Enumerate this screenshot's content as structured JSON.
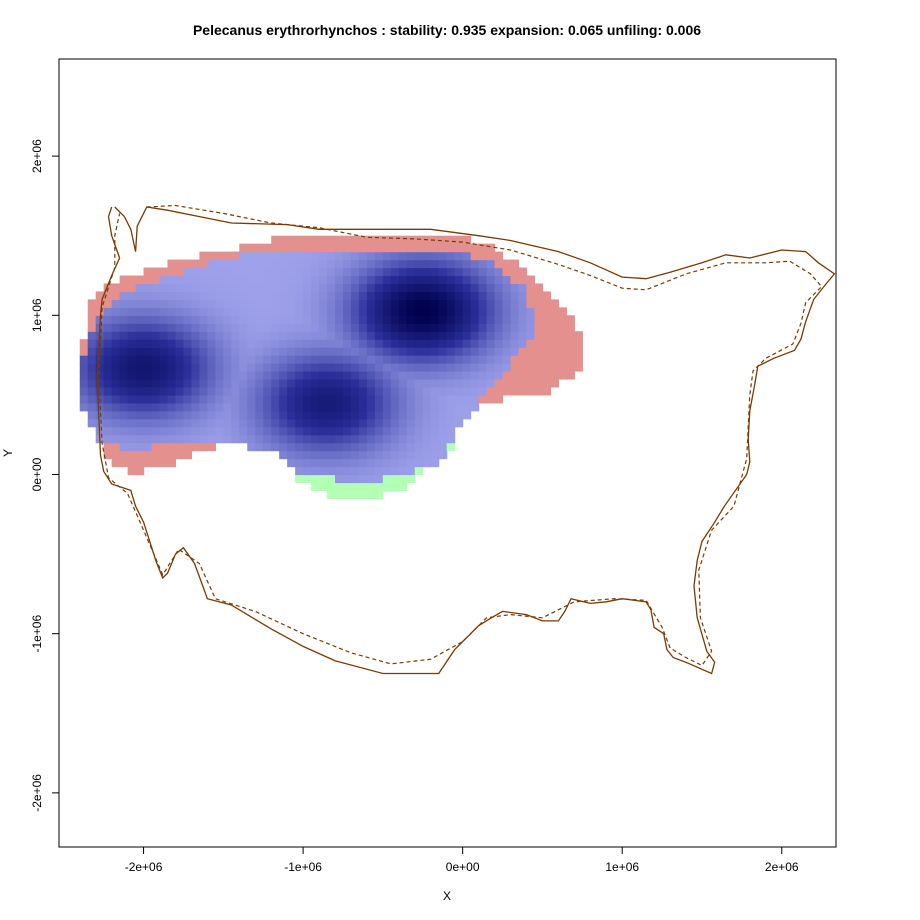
{
  "chart_data": {
    "type": "heatmap",
    "title": "Pelecanus erythrorhynchos : stability: 0.935 expansion: 0.065 unfiling: 0.006",
    "xlabel": "X",
    "ylabel": "Y",
    "xlim": [
      -2530000,
      2340000
    ],
    "ylim": [
      -2340000,
      2610000
    ],
    "x_ticks": [
      {
        "value": -2000000,
        "label": "-2e+06"
      },
      {
        "value": -1000000,
        "label": "-1e+06"
      },
      {
        "value": 0,
        "label": "0e+00"
      },
      {
        "value": 1000000,
        "label": "1e+06"
      },
      {
        "value": 2000000,
        "label": "2e+06"
      }
    ],
    "y_ticks": [
      {
        "value": -2000000,
        "label": "-2e+06"
      },
      {
        "value": -1000000,
        "label": "-1e+06"
      },
      {
        "value": 0,
        "label": "0e+00"
      },
      {
        "value": 1000000,
        "label": "1e+06"
      },
      {
        "value": 2000000,
        "label": "2e+06"
      }
    ],
    "stats": {
      "stability": 0.935,
      "expansion": 0.065,
      "unfilling": 0.006
    },
    "colors": {
      "stability": "#2a2f9a",
      "stability_peak": "#00004d",
      "expansion": "#e3908f",
      "unfilling": "#b3ffb3",
      "outline": "#7a3a00"
    },
    "density_peaks": [
      {
        "x": -2000000,
        "y": 670000,
        "weight": 0.78
      },
      {
        "x": -250000,
        "y": 1030000,
        "weight": 1.0
      },
      {
        "x": -850000,
        "y": 450000,
        "weight": 0.72
      }
    ],
    "regions": {
      "expansion": [
        [
          -2350000,
          1100000
        ],
        [
          -2200000,
          1200000
        ],
        [
          -1800000,
          1340000
        ],
        [
          -1300000,
          1450000
        ],
        [
          -1100000,
          1500000
        ],
        [
          -900000,
          1520000
        ],
        [
          -500000,
          1520000
        ],
        [
          0,
          1500000
        ],
        [
          200000,
          1420000
        ],
        [
          400000,
          1300000
        ],
        [
          550000,
          1150000
        ],
        [
          700000,
          950000
        ],
        [
          780000,
          760000
        ],
        [
          700000,
          620000
        ],
        [
          500000,
          500000
        ],
        [
          300000,
          480000
        ],
        [
          100000,
          460000
        ],
        [
          -300000,
          380000
        ],
        [
          -600000,
          280000
        ],
        [
          -800000,
          200000
        ],
        [
          -1200000,
          180000
        ],
        [
          -1500000,
          200000
        ],
        [
          -1900000,
          30000
        ],
        [
          -2100000,
          20000
        ],
        [
          -2250000,
          120000
        ],
        [
          -2330000,
          350000
        ],
        [
          -2400000,
          600000
        ]
      ],
      "stability": [
        [
          -2300000,
          1000000
        ],
        [
          -2150000,
          1120000
        ],
        [
          -1900000,
          1230000
        ],
        [
          -1600000,
          1330000
        ],
        [
          -1300000,
          1400000
        ],
        [
          -900000,
          1420000
        ],
        [
          -400000,
          1420000
        ],
        [
          0,
          1400000
        ],
        [
          200000,
          1320000
        ],
        [
          380000,
          1180000
        ],
        [
          450000,
          1000000
        ],
        [
          420000,
          830000
        ],
        [
          300000,
          700000
        ],
        [
          200000,
          560000
        ],
        [
          100000,
          450000
        ],
        [
          -50000,
          250000
        ],
        [
          -150000,
          60000
        ],
        [
          -450000,
          -20000
        ],
        [
          -700000,
          -40000
        ],
        [
          -1000000,
          0
        ],
        [
          -1200000,
          150000
        ],
        [
          -1500000,
          200000
        ],
        [
          -1800000,
          180000
        ],
        [
          -2050000,
          170000
        ],
        [
          -2250000,
          180000
        ],
        [
          -2380000,
          400000
        ],
        [
          -2400000,
          650000
        ]
      ],
      "unfilling": [
        [
          -100000,
          350000
        ],
        [
          0,
          380000
        ],
        [
          -50000,
          200000
        ],
        [
          -150000,
          80000
        ],
        [
          -400000,
          -100000
        ],
        [
          -650000,
          -160000
        ],
        [
          -850000,
          -120000
        ],
        [
          -1050000,
          -20000
        ],
        [
          -900000,
          40000
        ],
        [
          -700000,
          0
        ],
        [
          -450000,
          10000
        ],
        [
          -250000,
          100000
        ]
      ]
    },
    "outline_solid": [
      [
        -2180000,
        1680000
      ],
      [
        -2120000,
        1620000
      ],
      [
        -2080000,
        1540000
      ],
      [
        -2050000,
        1400000
      ],
      [
        -2040000,
        1560000
      ],
      [
        -1980000,
        1680000
      ],
      [
        -1850000,
        1660000
      ],
      [
        -1700000,
        1630000
      ],
      [
        -1450000,
        1580000
      ],
      [
        -1100000,
        1570000
      ],
      [
        -900000,
        1540000
      ],
      [
        -500000,
        1540000
      ],
      [
        -200000,
        1540000
      ],
      [
        100000,
        1500000
      ],
      [
        300000,
        1470000
      ],
      [
        600000,
        1400000
      ],
      [
        800000,
        1330000
      ],
      [
        1000000,
        1240000
      ],
      [
        1150000,
        1230000
      ],
      [
        1300000,
        1270000
      ],
      [
        1500000,
        1330000
      ],
      [
        1650000,
        1380000
      ],
      [
        1800000,
        1360000
      ],
      [
        2000000,
        1410000
      ],
      [
        2150000,
        1400000
      ],
      [
        2230000,
        1330000
      ],
      [
        2330000,
        1260000
      ],
      [
        2280000,
        1200000
      ],
      [
        2200000,
        1100000
      ],
      [
        2150000,
        960000
      ],
      [
        2120000,
        850000
      ],
      [
        2080000,
        780000
      ],
      [
        1950000,
        730000
      ],
      [
        1850000,
        680000
      ],
      [
        1830000,
        560000
      ],
      [
        1800000,
        400000
      ],
      [
        1790000,
        220000
      ],
      [
        1800000,
        80000
      ],
      [
        1780000,
        0
      ],
      [
        1640000,
        -200000
      ],
      [
        1580000,
        -300000
      ],
      [
        1500000,
        -420000
      ],
      [
        1470000,
        -540000
      ],
      [
        1450000,
        -700000
      ],
      [
        1470000,
        -900000
      ],
      [
        1530000,
        -1110000
      ],
      [
        1580000,
        -1180000
      ],
      [
        1560000,
        -1250000
      ],
      [
        1400000,
        -1180000
      ],
      [
        1320000,
        -1150000
      ],
      [
        1280000,
        -1100000
      ],
      [
        1260000,
        -1000000
      ],
      [
        1200000,
        -960000
      ],
      [
        1180000,
        -850000
      ],
      [
        1150000,
        -800000
      ],
      [
        1000000,
        -780000
      ],
      [
        900000,
        -800000
      ],
      [
        800000,
        -810000
      ],
      [
        680000,
        -780000
      ],
      [
        640000,
        -860000
      ],
      [
        600000,
        -920000
      ],
      [
        500000,
        -920000
      ],
      [
        400000,
        -880000
      ],
      [
        250000,
        -860000
      ],
      [
        180000,
        -900000
      ],
      [
        100000,
        -950000
      ],
      [
        -50000,
        -1100000
      ],
      [
        -150000,
        -1250000
      ],
      [
        -500000,
        -1250000
      ],
      [
        -800000,
        -1170000
      ],
      [
        -1000000,
        -1080000
      ],
      [
        -1200000,
        -970000
      ],
      [
        -1450000,
        -820000
      ],
      [
        -1600000,
        -780000
      ],
      [
        -1680000,
        -560000
      ],
      [
        -1750000,
        -460000
      ],
      [
        -1800000,
        -500000
      ],
      [
        -1850000,
        -620000
      ],
      [
        -1880000,
        -650000
      ],
      [
        -1920000,
        -550000
      ],
      [
        -2000000,
        -300000
      ],
      [
        -2050000,
        -200000
      ],
      [
        -2080000,
        -100000
      ],
      [
        -2200000,
        -60000
      ],
      [
        -2250000,
        20000
      ],
      [
        -2270000,
        120000
      ],
      [
        -2280000,
        350000
      ],
      [
        -2290000,
        600000
      ],
      [
        -2270000,
        1000000
      ],
      [
        -2260000,
        1100000
      ],
      [
        -2200000,
        1250000
      ],
      [
        -2150000,
        1360000
      ],
      [
        -2200000,
        1500000
      ],
      [
        -2220000,
        1620000
      ],
      [
        -2200000,
        1680000
      ]
    ],
    "outline_dashed": [
      [
        -1980000,
        1680000
      ],
      [
        -1800000,
        1690000
      ],
      [
        -1500000,
        1640000
      ],
      [
        -1200000,
        1580000
      ],
      [
        -900000,
        1550000
      ],
      [
        -600000,
        1490000
      ],
      [
        -300000,
        1480000
      ],
      [
        0,
        1460000
      ],
      [
        300000,
        1410000
      ],
      [
        600000,
        1320000
      ],
      [
        800000,
        1250000
      ],
      [
        1000000,
        1170000
      ],
      [
        1150000,
        1160000
      ],
      [
        1400000,
        1260000
      ],
      [
        1650000,
        1330000
      ],
      [
        1900000,
        1330000
      ],
      [
        2050000,
        1340000
      ],
      [
        2180000,
        1260000
      ],
      [
        2250000,
        1180000
      ],
      [
        2150000,
        1080000
      ],
      [
        2120000,
        950000
      ],
      [
        2070000,
        820000
      ],
      [
        1900000,
        730000
      ],
      [
        1820000,
        650000
      ],
      [
        1800000,
        500000
      ],
      [
        1790000,
        300000
      ],
      [
        1780000,
        100000
      ],
      [
        1700000,
        -200000
      ],
      [
        1560000,
        -350000
      ],
      [
        1480000,
        -600000
      ],
      [
        1490000,
        -900000
      ],
      [
        1560000,
        -1110000
      ],
      [
        1500000,
        -1200000
      ],
      [
        1400000,
        -1150000
      ],
      [
        1300000,
        -1090000
      ],
      [
        1250000,
        -960000
      ],
      [
        1150000,
        -790000
      ],
      [
        950000,
        -780000
      ],
      [
        700000,
        -800000
      ],
      [
        500000,
        -900000
      ],
      [
        300000,
        -880000
      ],
      [
        150000,
        -900000
      ],
      [
        0,
        -1050000
      ],
      [
        -200000,
        -1160000
      ],
      [
        -450000,
        -1190000
      ],
      [
        -700000,
        -1120000
      ],
      [
        -1000000,
        -1000000
      ],
      [
        -1300000,
        -860000
      ],
      [
        -1550000,
        -780000
      ],
      [
        -1650000,
        -560000
      ],
      [
        -1780000,
        -470000
      ],
      [
        -1880000,
        -630000
      ],
      [
        -2000000,
        -350000
      ],
      [
        -2100000,
        -120000
      ],
      [
        -2220000,
        -20000
      ],
      [
        -2260000,
        200000
      ],
      [
        -2280000,
        600000
      ],
      [
        -2260000,
        1050000
      ],
      [
        -2180000,
        1300000
      ],
      [
        -2180000,
        1500000
      ],
      [
        -2150000,
        1640000
      ]
    ]
  }
}
